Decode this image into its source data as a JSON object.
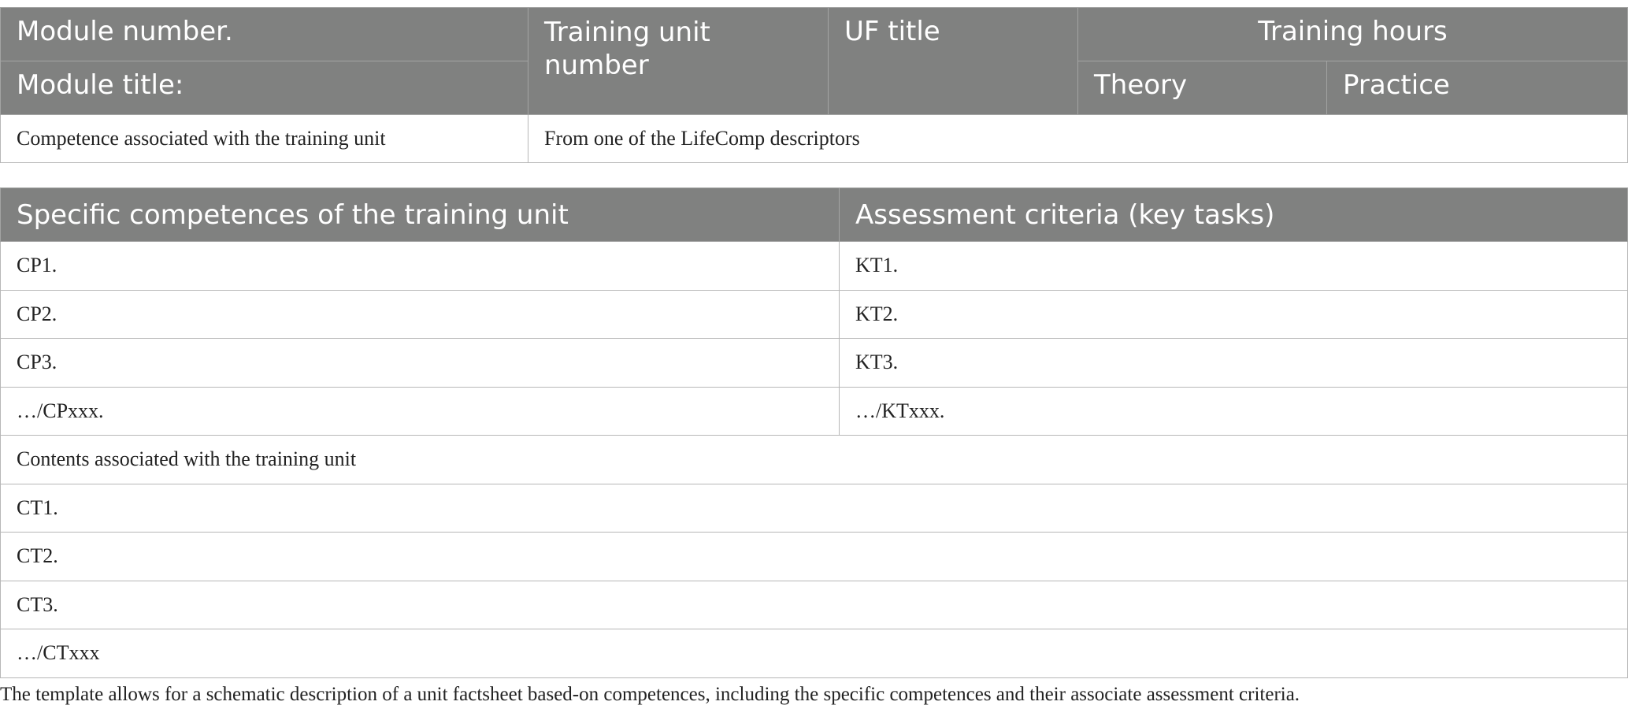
{
  "table1": {
    "header": {
      "module_number": "Module number.",
      "module_title": "Module title:",
      "training_unit_number": "Training unit number",
      "uf_title": "UF title",
      "training_hours": "Training hours",
      "theory": "Theory",
      "practice": "Practice"
    },
    "row": {
      "label": "Competence associated with the training unit",
      "value": "From one of the LifeComp descriptors"
    }
  },
  "table2": {
    "header": {
      "specific": "Specific competences of the training unit",
      "assessment": "Assessment criteria (key tasks)"
    },
    "rows": [
      {
        "cp": "CP1.",
        "kt": "KT1."
      },
      {
        "cp": "CP2.",
        "kt": "KT2."
      },
      {
        "cp": "CP3.",
        "kt": "KT3."
      },
      {
        "cp": "…/CPxxx.",
        "kt": "…/KTxxx."
      }
    ],
    "contents_label": "Contents associated with the training unit",
    "contents": [
      "CT1.",
      "CT2.",
      "CT3.",
      "…/CTxxx"
    ]
  },
  "caption": "The template allows for a schematic description of a unit factsheet based-on competences, including the specific competences and their associate assessment criteria."
}
